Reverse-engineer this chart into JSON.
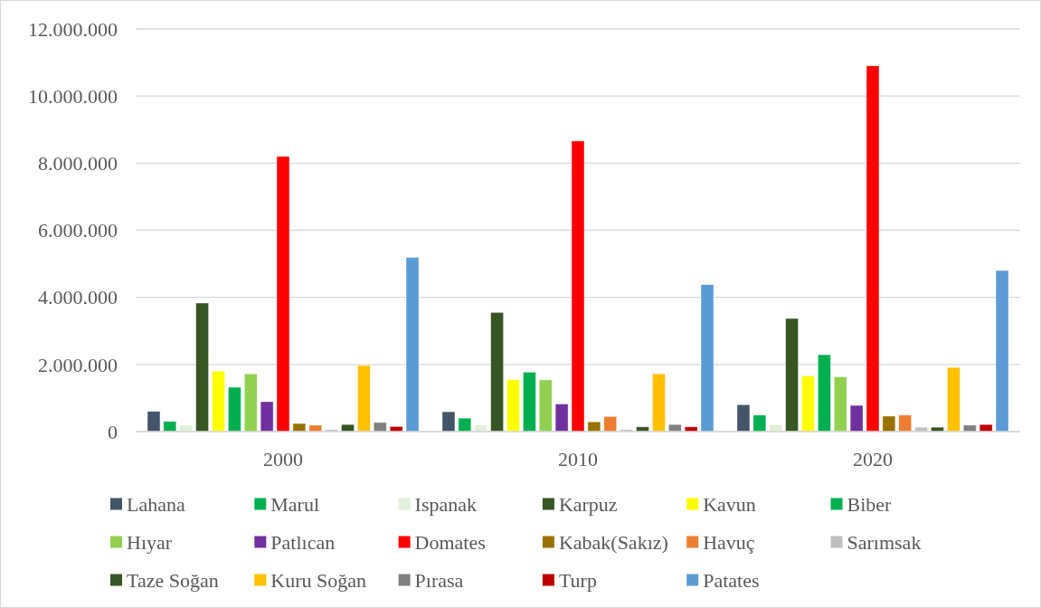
{
  "chart_data": {
    "type": "bar",
    "categories": [
      "2000",
      "2010",
      "2020"
    ],
    "ylim": [
      0,
      12000000
    ],
    "yticks": [
      0,
      {
        "value": 2000000,
        "label": "2.000.000"
      },
      {
        "value": 4000000,
        "label": "4.000.000"
      },
      {
        "value": 6000000,
        "label": "6.000.000"
      },
      {
        "value": 8000000,
        "label": "8.000.000"
      },
      {
        "value": 10000000,
        "label": "10.000.000"
      },
      {
        "value": 12000000,
        "label": "12.000.000"
      }
    ],
    "grid": "y",
    "legend": "bottom",
    "series": [
      {
        "name": "Lahana",
        "color": "#44546a",
        "values": [
          600000,
          590000,
          800000
        ]
      },
      {
        "name": "Marul",
        "color": "#00b050",
        "values": [
          300000,
          400000,
          490000
        ]
      },
      {
        "name": "Ispanak",
        "color": "#e2efda",
        "values": [
          190000,
          190000,
          210000
        ]
      },
      {
        "name": "Karpuz",
        "color": "#375623",
        "values": [
          3830000,
          3550000,
          3370000
        ]
      },
      {
        "name": "Kavun",
        "color": "#ffff00",
        "values": [
          1800000,
          1550000,
          1660000
        ]
      },
      {
        "name": "Biber",
        "color": "#00b050",
        "values": [
          1320000,
          1770000,
          2290000
        ]
      },
      {
        "name": "Hıyar",
        "color": "#92d050",
        "values": [
          1720000,
          1540000,
          1630000
        ]
      },
      {
        "name": "Patlıcan",
        "color": "#7030a0",
        "values": [
          890000,
          820000,
          780000
        ]
      },
      {
        "name": "Domates",
        "color": "#ff0000",
        "values": [
          8200000,
          8660000,
          10900000
        ]
      },
      {
        "name": "Kabak(Sakız)",
        "color": "#997300",
        "values": [
          240000,
          290000,
          460000
        ]
      },
      {
        "name": "Havuç",
        "color": "#ed7d31",
        "values": [
          190000,
          450000,
          490000
        ]
      },
      {
        "name": "Sarımsak",
        "color": "#bfbfbf",
        "values": [
          60000,
          60000,
          130000
        ]
      },
      {
        "name": "Taze Soğan",
        "color": "#375623",
        "values": [
          210000,
          140000,
          130000
        ]
      },
      {
        "name": "Kuru Soğan",
        "color": "#ffc000",
        "values": [
          1970000,
          1720000,
          1910000
        ]
      },
      {
        "name": "Pırasa",
        "color": "#808080",
        "values": [
          270000,
          210000,
          190000
        ]
      },
      {
        "name": "Turp",
        "color": "#c00000",
        "values": [
          150000,
          140000,
          210000
        ]
      },
      {
        "name": "Patates",
        "color": "#5b9bd5",
        "values": [
          5190000,
          4380000,
          4800000
        ]
      }
    ]
  }
}
